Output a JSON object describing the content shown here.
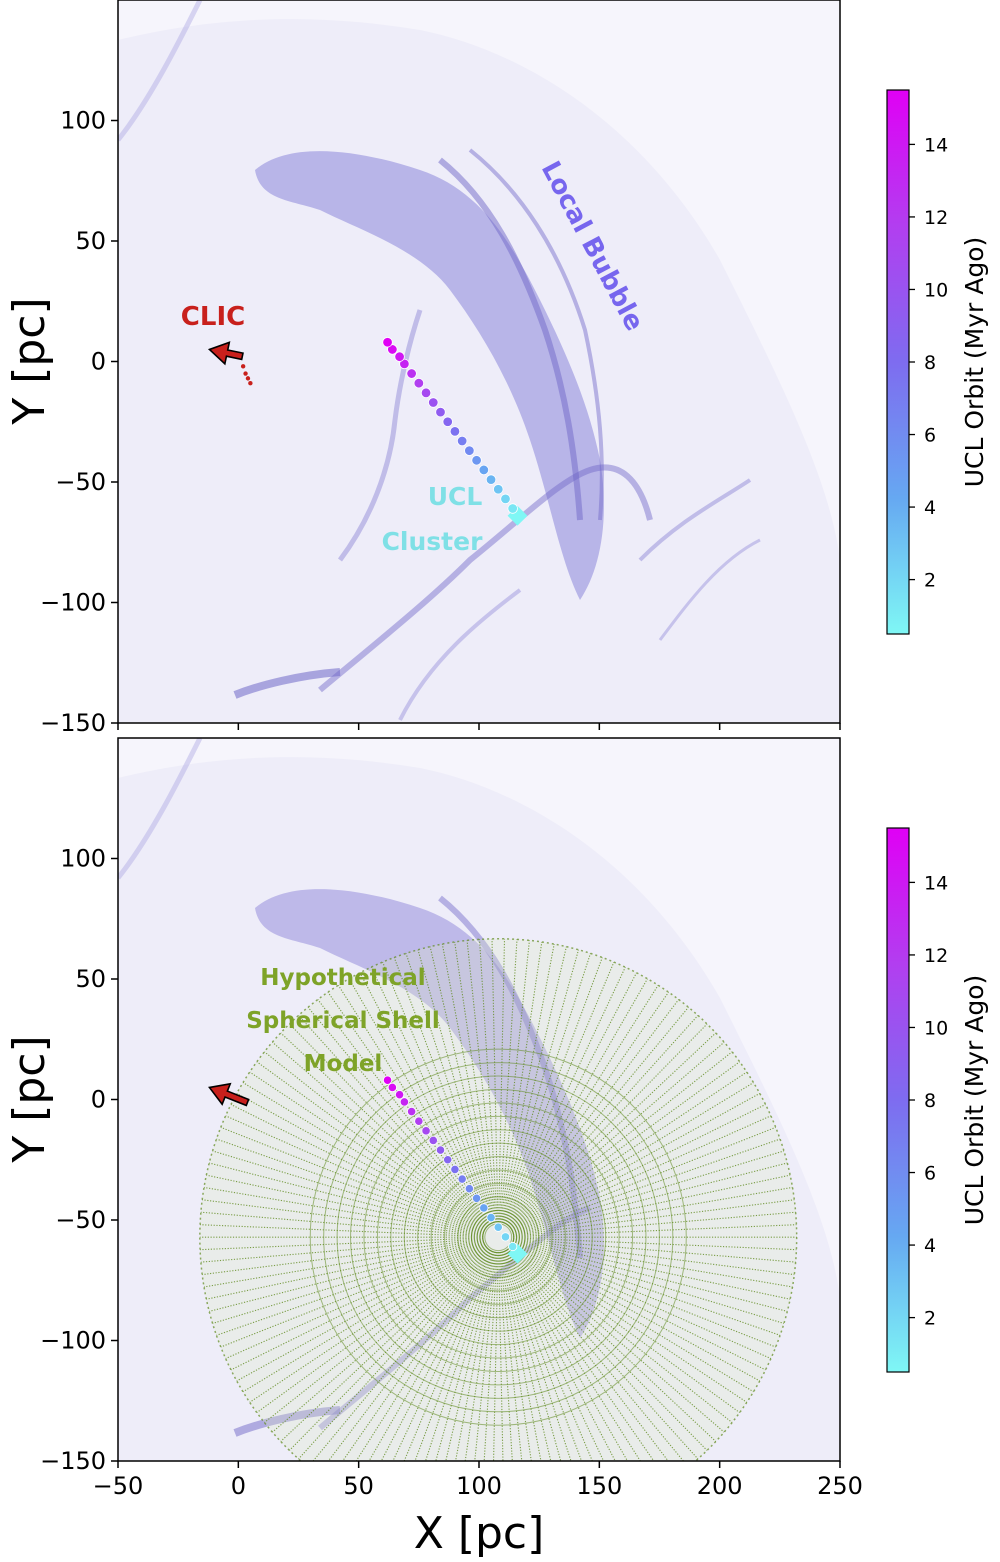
{
  "chart_data": [
    {
      "type": "scatter",
      "panel": "top",
      "xlim": [
        -50,
        250
      ],
      "ylim": [
        -150,
        150
      ],
      "xticks": [
        -50,
        0,
        50,
        100,
        150,
        200,
        250
      ],
      "yticks": [
        -150,
        -100,
        -50,
        0,
        50,
        100
      ],
      "xlabel": "",
      "ylabel": "Y [pc]",
      "annotations": {
        "local_bubble": "Local Bubble",
        "clic": "CLIC",
        "ucl_line1": "UCL",
        "ucl_line2": "Cluster"
      },
      "ucl_orbit": {
        "name": "UCL Orbit",
        "x": [
          116,
          114,
          111,
          108,
          105,
          102,
          99,
          96,
          93,
          90,
          87,
          84,
          81,
          78,
          75,
          72,
          69,
          67,
          64,
          62
        ],
        "y": [
          -64,
          -61,
          -57,
          -53,
          -49,
          -45,
          -41,
          -37,
          -33,
          -29,
          -25,
          -21,
          -17,
          -13,
          -9,
          -5,
          -1,
          2,
          5,
          8
        ],
        "age_myr": [
          0.5,
          1.3,
          2.1,
          2.9,
          3.7,
          4.5,
          5.3,
          6.1,
          6.9,
          7.7,
          8.5,
          9.3,
          10.1,
          10.9,
          11.7,
          12.5,
          13.3,
          14.1,
          14.9,
          15.5
        ]
      },
      "clic_orbit": {
        "name": "CLIC",
        "x": [
          -12,
          0,
          2,
          3,
          4,
          5
        ],
        "y": [
          5,
          3,
          -2,
          -5,
          -7,
          -9
        ]
      }
    },
    {
      "type": "scatter",
      "panel": "bottom",
      "xlim": [
        -50,
        250
      ],
      "ylim": [
        -150,
        150
      ],
      "xticks": [
        -50,
        0,
        50,
        100,
        150,
        200,
        250
      ],
      "yticks": [
        -150,
        -100,
        -50,
        0,
        50,
        100
      ],
      "xlabel": "X [pc]",
      "ylabel": "Y [pc]",
      "annotations": {
        "shell_line1": "Hypothetical",
        "shell_line2": "Spherical Shell",
        "shell_line3": "Model"
      },
      "shell_model": {
        "name": "Hypothetical Spherical Shell Model",
        "center": [
          108,
          -57
        ],
        "radius": 124
      },
      "ucl_orbit": {
        "name": "UCL Orbit",
        "x": [
          116,
          114,
          111,
          108,
          105,
          102,
          99,
          96,
          93,
          90,
          87,
          84,
          81,
          78,
          75,
          72,
          69,
          67,
          64,
          62
        ],
        "y": [
          -64,
          -61,
          -57,
          -53,
          -49,
          -45,
          -41,
          -37,
          -33,
          -29,
          -25,
          -21,
          -17,
          -13,
          -9,
          -5,
          -1,
          2,
          5,
          8
        ],
        "age_myr": [
          0.5,
          1.3,
          2.1,
          2.9,
          3.7,
          4.5,
          5.3,
          6.1,
          6.9,
          7.7,
          8.5,
          9.3,
          10.1,
          10.9,
          11.7,
          12.5,
          13.3,
          14.1,
          14.9,
          15.5
        ]
      },
      "clic_arrow": {
        "x": [
          -12
        ],
        "y": [
          5
        ]
      }
    }
  ],
  "colorbar": {
    "label": "UCL Orbit (Myr Ago)",
    "range": [
      0.5,
      15.5
    ],
    "ticks": [
      2,
      4,
      6,
      8,
      10,
      12,
      14
    ],
    "cmap": [
      "#7ff7f5",
      "#66a8f2",
      "#7e6cf0",
      "#b23ef0",
      "#e000f5"
    ]
  },
  "colors": {
    "bubble": "#7b73d6",
    "clic": "#c8201c",
    "ucl_label": "#7fe0e6",
    "local_bubble_label": "#7766ee",
    "shell": "#5f8a1e",
    "shell_label": "#7ea328"
  }
}
